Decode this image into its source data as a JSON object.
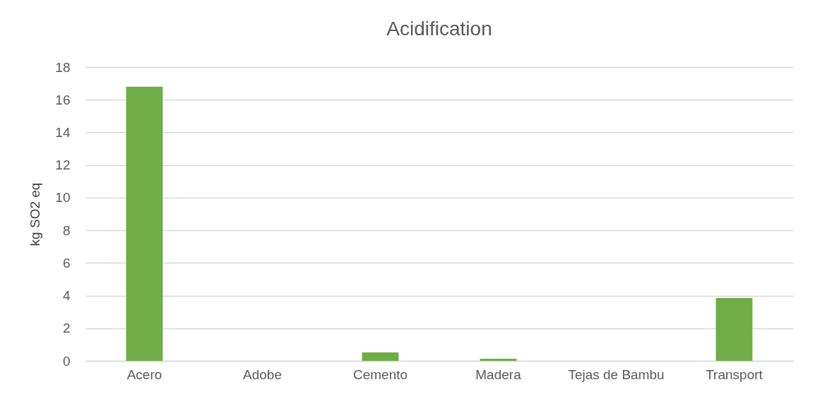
{
  "chart_data": {
    "type": "bar",
    "title": "Acidification",
    "ylabel": "kg SO2 eq",
    "categories": [
      "Acero",
      "Adobe",
      "Cemento",
      "Madera",
      "Tejas de Bambu",
      "Transport"
    ],
    "values": [
      16.8,
      0,
      0.52,
      0.13,
      0,
      3.85
    ],
    "color": "#70ad47",
    "ylim": [
      0,
      18
    ],
    "yticks": [
      0,
      2,
      4,
      6,
      8,
      10,
      12,
      14,
      16,
      18
    ],
    "grid": "y"
  }
}
